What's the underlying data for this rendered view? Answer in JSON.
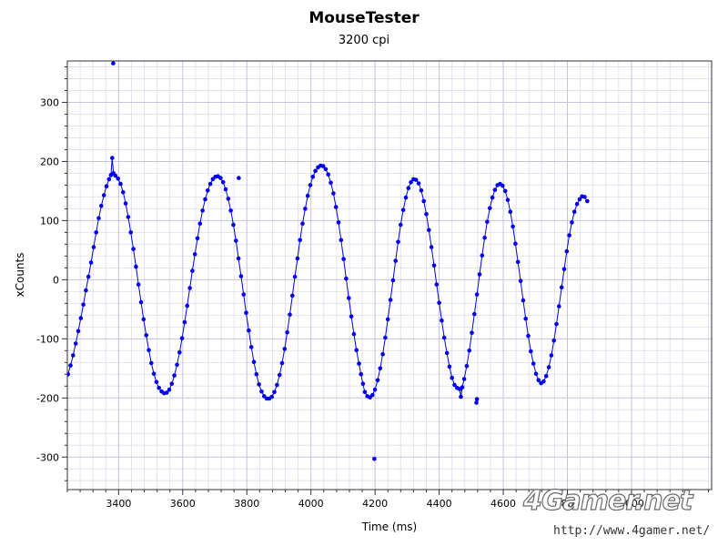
{
  "chart_data": {
    "type": "scatter",
    "title": "MouseTester",
    "subtitle": "3200 cpi",
    "xlabel": "Time (ms)",
    "ylabel": "xCounts",
    "xlim": [
      3240,
      5250
    ],
    "ylim": [
      -355,
      370
    ],
    "x_ticks": [
      3400,
      3600,
      3800,
      4000,
      4200,
      4400,
      4600,
      4800,
      5000
    ],
    "y_ticks": [
      -300,
      -200,
      -100,
      0,
      100,
      200,
      300
    ],
    "grid": true,
    "color": "#0000ee",
    "series": [
      {
        "line": true,
        "markers": true,
        "points": [
          [
            3242,
            -160
          ],
          [
            3250,
            -145
          ],
          [
            3258,
            -128
          ],
          [
            3266,
            -108
          ],
          [
            3274,
            -87
          ],
          [
            3282,
            -65
          ],
          [
            3290,
            -42
          ],
          [
            3298,
            -18
          ],
          [
            3306,
            5
          ],
          [
            3314,
            29
          ],
          [
            3322,
            55
          ],
          [
            3330,
            80
          ],
          [
            3338,
            104
          ],
          [
            3346,
            125
          ],
          [
            3354,
            143
          ],
          [
            3362,
            158
          ],
          [
            3370,
            170
          ],
          [
            3376,
            177
          ],
          [
            3380,
            206
          ],
          [
            3384,
            180
          ],
          [
            3390,
            176
          ],
          [
            3398,
            171
          ],
          [
            3406,
            162
          ],
          [
            3414,
            148
          ],
          [
            3422,
            129
          ],
          [
            3430,
            106
          ],
          [
            3438,
            80
          ],
          [
            3446,
            52
          ],
          [
            3454,
            22
          ],
          [
            3462,
            -8
          ],
          [
            3470,
            -38
          ],
          [
            3478,
            -67
          ],
          [
            3486,
            -94
          ],
          [
            3494,
            -119
          ],
          [
            3502,
            -141
          ],
          [
            3510,
            -159
          ],
          [
            3518,
            -173
          ],
          [
            3526,
            -183
          ],
          [
            3534,
            -189
          ],
          [
            3542,
            -192
          ],
          [
            3550,
            -191
          ],
          [
            3558,
            -186
          ],
          [
            3566,
            -176
          ],
          [
            3574,
            -162
          ],
          [
            3582,
            -144
          ],
          [
            3590,
            -123
          ],
          [
            3598,
            -99
          ],
          [
            3606,
            -72
          ],
          [
            3614,
            -44
          ],
          [
            3622,
            -14
          ],
          [
            3630,
            15
          ],
          [
            3638,
            43
          ],
          [
            3646,
            70
          ],
          [
            3654,
            95
          ],
          [
            3662,
            117
          ],
          [
            3670,
            136
          ],
          [
            3678,
            151
          ],
          [
            3686,
            162
          ],
          [
            3694,
            170
          ],
          [
            3702,
            174
          ],
          [
            3710,
            175
          ],
          [
            3718,
            172
          ],
          [
            3726,
            165
          ],
          [
            3734,
            153
          ],
          [
            3742,
            137
          ],
          [
            3750,
            117
          ],
          [
            3758,
            93
          ],
          [
            3766,
            66
          ],
          [
            3774,
            36
          ],
          [
            3782,
            6
          ],
          [
            3790,
            -25
          ],
          [
            3798,
            -56
          ],
          [
            3806,
            -86
          ],
          [
            3814,
            -114
          ],
          [
            3822,
            -139
          ],
          [
            3830,
            -160
          ],
          [
            3838,
            -177
          ],
          [
            3846,
            -189
          ],
          [
            3854,
            -197
          ],
          [
            3862,
            -201
          ],
          [
            3870,
            -201
          ],
          [
            3878,
            -198
          ],
          [
            3886,
            -190
          ],
          [
            3894,
            -178
          ],
          [
            3902,
            -161
          ],
          [
            3910,
            -141
          ],
          [
            3918,
            -117
          ],
          [
            3926,
            -89
          ],
          [
            3934,
            -59
          ],
          [
            3942,
            -27
          ],
          [
            3950,
            5
          ],
          [
            3958,
            36
          ],
          [
            3966,
            67
          ],
          [
            3974,
            95
          ],
          [
            3982,
            120
          ],
          [
            3990,
            142
          ],
          [
            3998,
            160
          ],
          [
            4006,
            174
          ],
          [
            4014,
            184
          ],
          [
            4022,
            190
          ],
          [
            4030,
            193
          ],
          [
            4038,
            192
          ],
          [
            4046,
            187
          ],
          [
            4054,
            178
          ],
          [
            4062,
            164
          ],
          [
            4070,
            146
          ],
          [
            4078,
            123
          ],
          [
            4086,
            97
          ],
          [
            4094,
            67
          ],
          [
            4102,
            35
          ],
          [
            4110,
            2
          ],
          [
            4118,
            -31
          ],
          [
            4126,
            -62
          ],
          [
            4134,
            -92
          ],
          [
            4142,
            -119
          ],
          [
            4150,
            -142
          ],
          [
            4156,
            -160
          ],
          [
            4162,
            -176
          ],
          [
            4168,
            -190
          ],
          [
            4176,
            -197
          ],
          [
            4184,
            -199
          ],
          [
            4192,
            -195
          ],
          [
            4200,
            -186
          ],
          [
            4208,
            -170
          ],
          [
            4216,
            -150
          ],
          [
            4224,
            -126
          ],
          [
            4232,
            -98
          ],
          [
            4240,
            -67
          ],
          [
            4248,
            -34
          ],
          [
            4256,
            -1
          ],
          [
            4264,
            32
          ],
          [
            4272,
            64
          ],
          [
            4280,
            93
          ],
          [
            4288,
            118
          ],
          [
            4296,
            139
          ],
          [
            4304,
            155
          ],
          [
            4312,
            165
          ],
          [
            4320,
            170
          ],
          [
            4328,
            169
          ],
          [
            4336,
            163
          ],
          [
            4344,
            151
          ],
          [
            4352,
            133
          ],
          [
            4360,
            111
          ],
          [
            4368,
            84
          ],
          [
            4376,
            55
          ],
          [
            4384,
            24
          ],
          [
            4392,
            -8
          ],
          [
            4400,
            -39
          ],
          [
            4408,
            -69
          ],
          [
            4416,
            -98
          ],
          [
            4424,
            -124
          ],
          [
            4432,
            -147
          ],
          [
            4440,
            -166
          ],
          [
            4448,
            -178
          ],
          [
            4456,
            -183
          ],
          [
            4464,
            -185
          ],
          [
            4468,
            -198
          ],
          [
            4472,
            -182
          ],
          [
            4478,
            -168
          ],
          [
            4486,
            -146
          ],
          [
            4494,
            -120
          ],
          [
            4502,
            -90
          ],
          [
            4510,
            -58
          ],
          [
            4518,
            -25
          ],
          [
            4526,
            9
          ],
          [
            4534,
            41
          ],
          [
            4542,
            71
          ],
          [
            4550,
            98
          ],
          [
            4558,
            121
          ],
          [
            4566,
            139
          ],
          [
            4574,
            152
          ],
          [
            4582,
            160
          ],
          [
            4590,
            162
          ],
          [
            4598,
            159
          ],
          [
            4606,
            150
          ],
          [
            4614,
            135
          ],
          [
            4622,
            115
          ],
          [
            4630,
            90
          ],
          [
            4638,
            61
          ],
          [
            4646,
            30
          ],
          [
            4654,
            -2
          ],
          [
            4662,
            -35
          ],
          [
            4670,
            -66
          ],
          [
            4678,
            -95
          ],
          [
            4686,
            -121
          ],
          [
            4694,
            -142
          ],
          [
            4702,
            -159
          ],
          [
            4710,
            -170
          ],
          [
            4718,
            -175
          ],
          [
            4726,
            -172
          ],
          [
            4734,
            -163
          ],
          [
            4742,
            -148
          ],
          [
            4750,
            -128
          ],
          [
            4758,
            -103
          ],
          [
            4766,
            -75
          ],
          [
            4774,
            -45
          ],
          [
            4782,
            -13
          ],
          [
            4790,
            18
          ],
          [
            4798,
            48
          ],
          [
            4806,
            75
          ],
          [
            4814,
            97
          ],
          [
            4822,
            115
          ],
          [
            4830,
            128
          ],
          [
            4838,
            136
          ],
          [
            4846,
            141
          ],
          [
            4854,
            140
          ],
          [
            4862,
            133
          ]
        ]
      },
      {
        "line": false,
        "markers": true,
        "points": [
          [
            3383,
            366
          ],
          [
            3775,
            172
          ],
          [
            4198,
            -303
          ],
          [
            4516,
            -208
          ],
          [
            4518,
            -202
          ]
        ]
      }
    ]
  },
  "watermark": {
    "logo": "4Gamer.net",
    "url": "http://www.4gamer.net/"
  }
}
